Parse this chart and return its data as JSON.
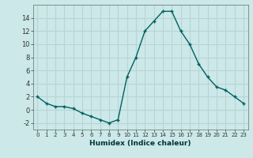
{
  "x": [
    0,
    1,
    2,
    3,
    4,
    5,
    6,
    7,
    8,
    9,
    10,
    11,
    12,
    13,
    14,
    15,
    16,
    17,
    18,
    19,
    20,
    21,
    22,
    23
  ],
  "y": [
    2,
    1,
    0.5,
    0.5,
    0.2,
    -0.5,
    -1.0,
    -1.5,
    -2.0,
    -1.5,
    5.0,
    8.0,
    12.0,
    13.5,
    15.0,
    15.0,
    12.0,
    10.0,
    7.0,
    5.0,
    3.5,
    3.0,
    2.0,
    1.0
  ],
  "line_color": "#006060",
  "bg_color": "#cce8e8",
  "grid_color": "#b8d4d4",
  "xlabel": "Humidex (Indice chaleur)",
  "xlim": [
    -0.5,
    23.5
  ],
  "ylim": [
    -3,
    16
  ],
  "xticks": [
    0,
    1,
    2,
    3,
    4,
    5,
    6,
    7,
    8,
    9,
    10,
    11,
    12,
    13,
    14,
    15,
    16,
    17,
    18,
    19,
    20,
    21,
    22,
    23
  ],
  "yticks": [
    -2,
    0,
    2,
    4,
    6,
    8,
    10,
    12,
    14
  ],
  "marker": "+"
}
